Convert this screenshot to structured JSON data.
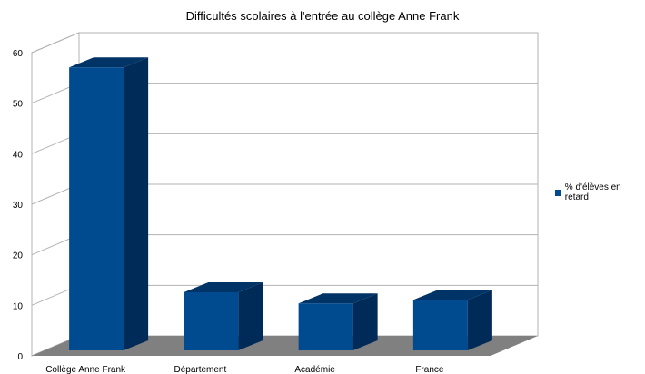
{
  "chart_data": {
    "type": "bar",
    "title": "Difficultés scolaires à l'entrée au collège Anne Frank",
    "categories": [
      "Collège Anne Frank",
      "Département",
      "Académie",
      "France"
    ],
    "series": [
      {
        "name": "% d'élèves en retard",
        "values": [
          56,
          11.5,
          9.3,
          10
        ]
      }
    ],
    "ylim": [
      0,
      60
    ],
    "yticks": [
      0,
      10,
      20,
      30,
      40,
      50,
      60
    ],
    "xlabel": "",
    "ylabel": "",
    "grid": true,
    "legend": "right",
    "style": "3d",
    "colors": {
      "bar_front": "#004a8f",
      "bar_side": "#002b59",
      "bar_top": "#003366",
      "floor": "#808080",
      "grid": "#b3b3b3"
    }
  }
}
